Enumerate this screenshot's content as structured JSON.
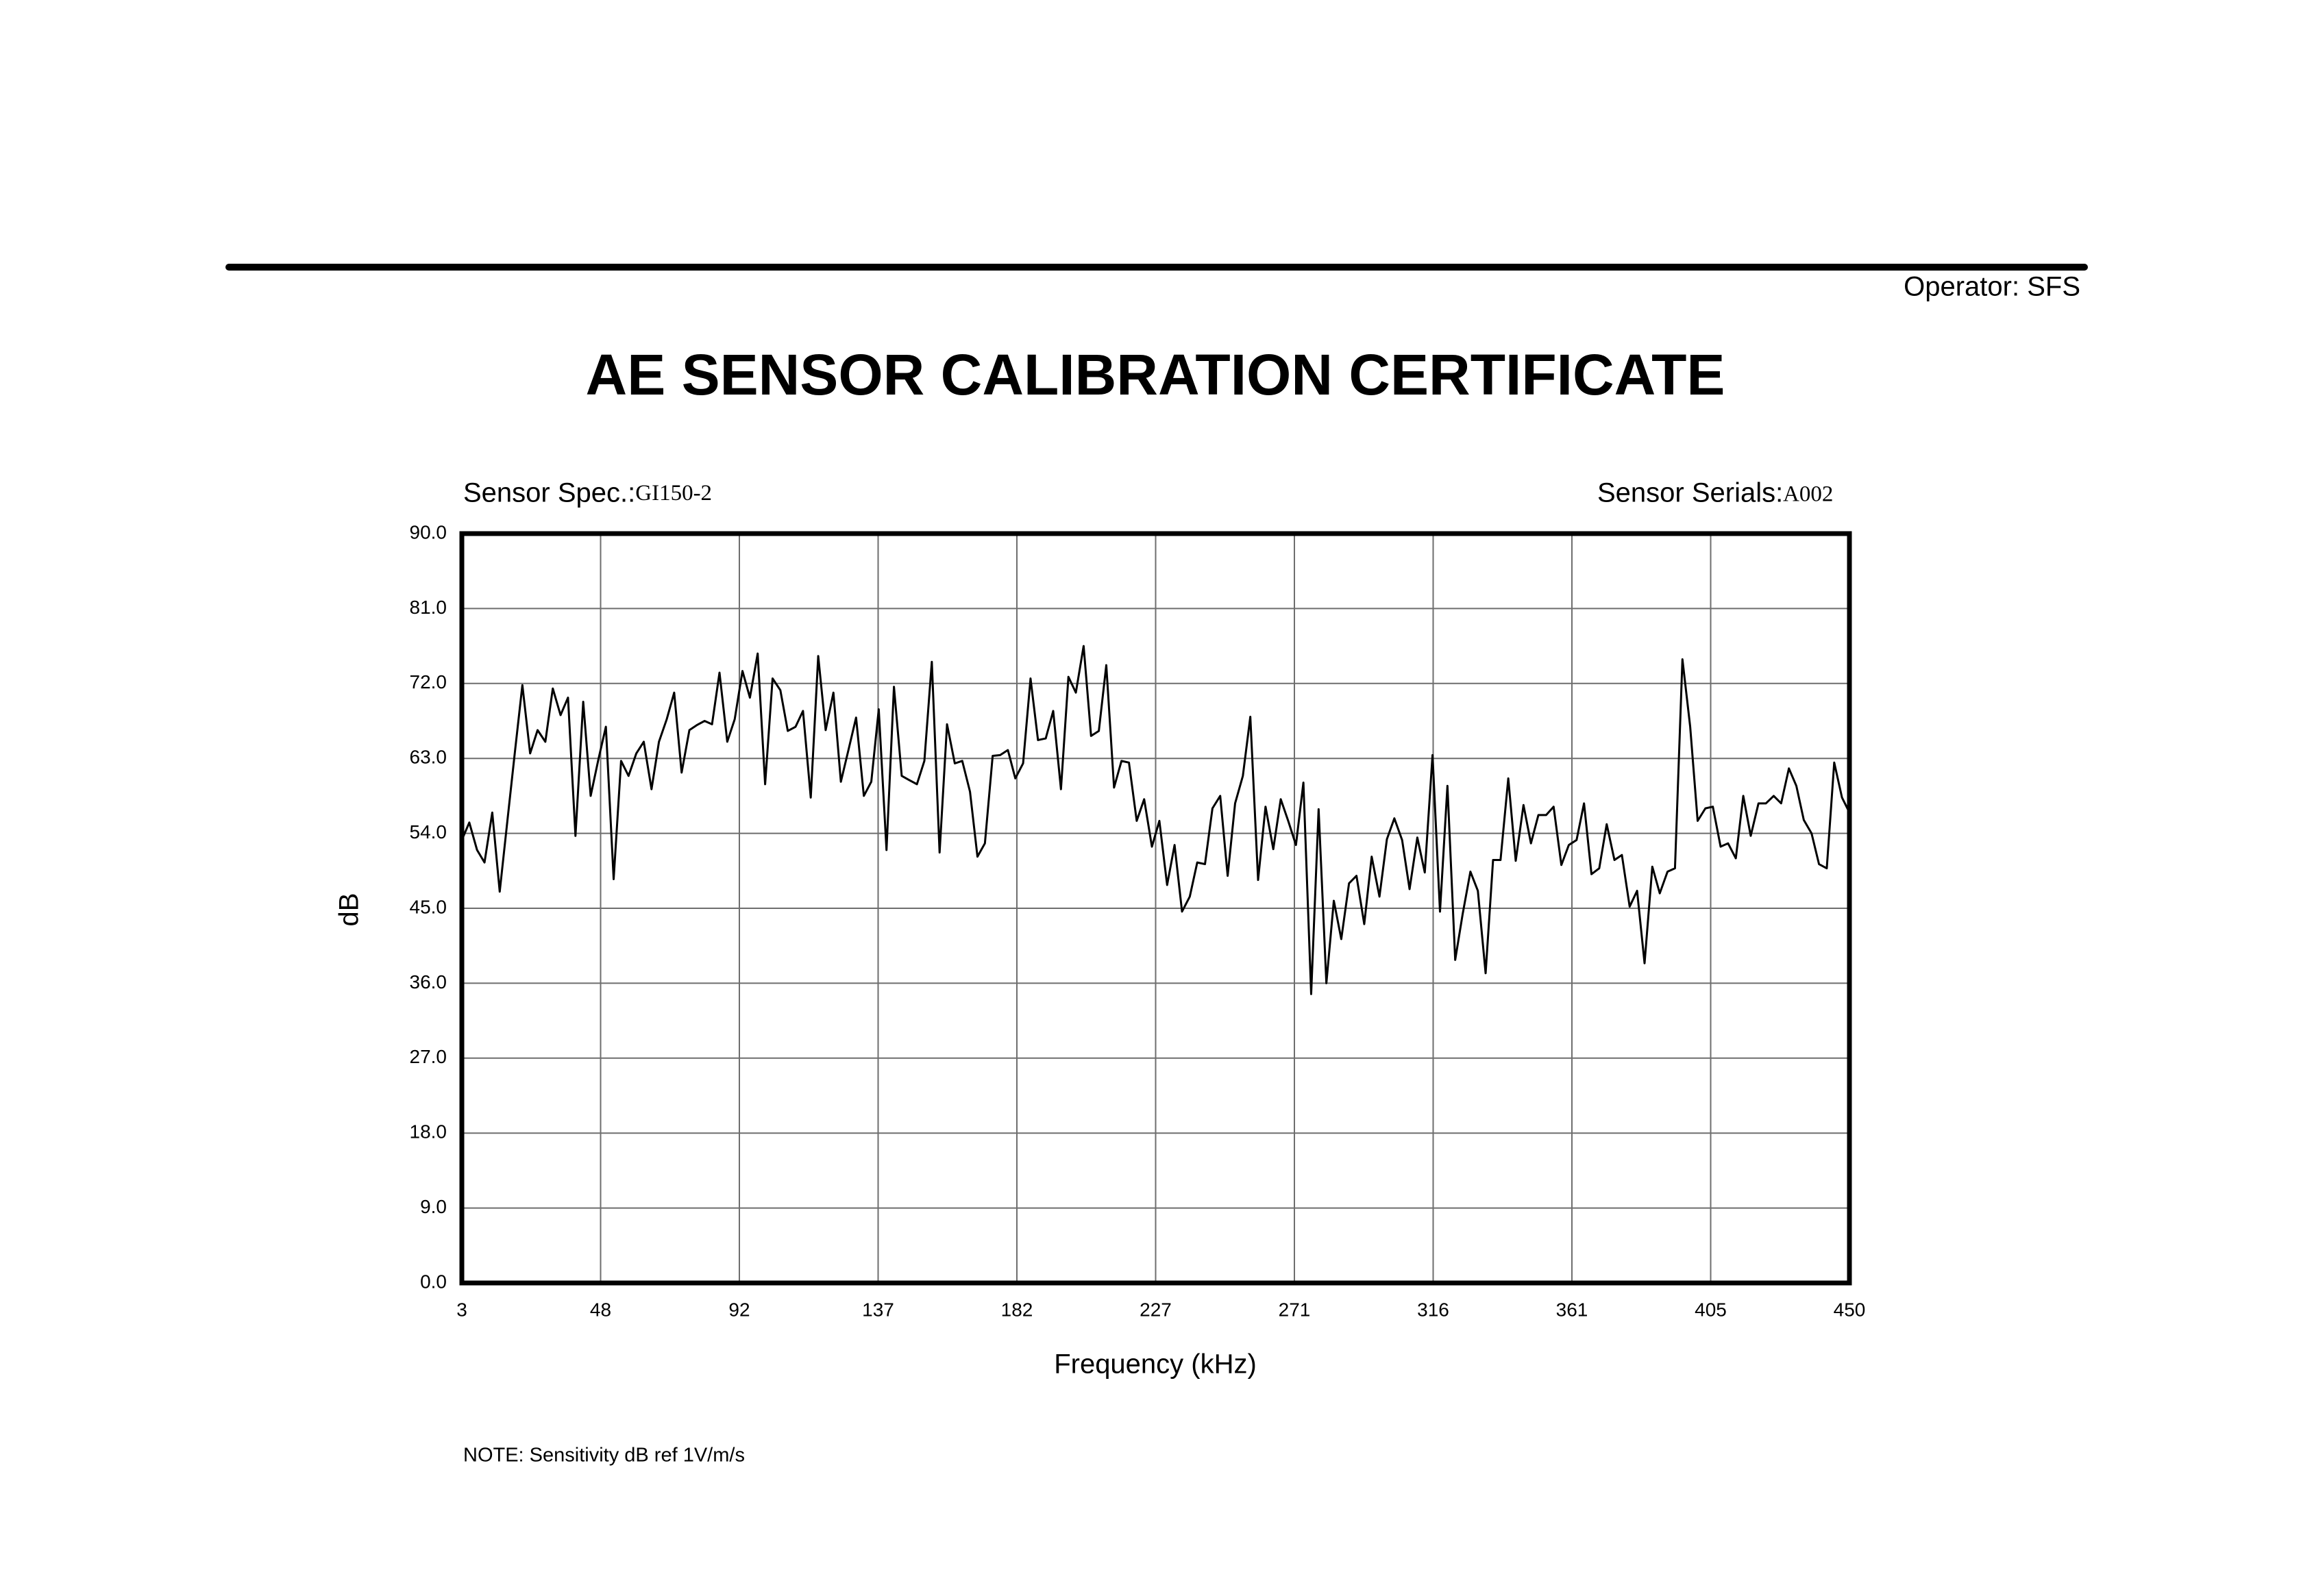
{
  "chart_data": {
    "type": "line",
    "operator": "Operator: SFS",
    "title": "AE SENSOR CALIBRATION CERTIFICATE",
    "sensor_spec_label": "Sensor Spec.:",
    "sensor_spec": "GI150-2",
    "sensor_serials_label": "Sensor Serials:",
    "sensor_serials": "A002",
    "x_label": "Frequency (kHz)",
    "y_label": "dB",
    "note": "NOTE:  Sensitivity dB ref 1V/m/s",
    "xlim": [
      3,
      450
    ],
    "xticks": [
      3,
      {
        "value": 47.7,
        "label": "48"
      },
      {
        "value": 92.4,
        "label": "92"
      },
      {
        "value": 137.1,
        "label": "137"
      },
      {
        "value": 181.8,
        "label": "182"
      },
      {
        "value": 226.5,
        "label": "227"
      },
      {
        "value": 271.2,
        "label": "271"
      },
      {
        "value": 315.9,
        "label": "316"
      },
      {
        "value": 360.6,
        "label": "361"
      },
      {
        "value": 405.3,
        "label": "405"
      },
      450
    ],
    "ylim": [
      0,
      90
    ],
    "yticks": [
      {
        "value": 0,
        "label": "0.0"
      },
      {
        "value": 9,
        "label": "9.0"
      },
      {
        "value": 18,
        "label": "18.0"
      },
      {
        "value": 27,
        "label": "27.0"
      },
      {
        "value": 36,
        "label": "36.0"
      },
      {
        "value": 45,
        "label": "45.0"
      },
      {
        "value": 54,
        "label": "54.0"
      },
      {
        "value": 63,
        "label": "63.0"
      },
      {
        "value": 72,
        "label": "72.0"
      },
      {
        "value": 81,
        "label": "81.0"
      },
      {
        "value": 90,
        "label": "90.0"
      }
    ],
    "grid": true,
    "color": "#000000",
    "x": [
      3.0,
      5.4,
      7.9,
      10.3,
      12.8,
      15.2,
      17.7,
      20.1,
      22.5,
      25.0,
      27.4,
      29.9,
      32.3,
      34.8,
      37.2,
      39.6,
      42.1,
      44.5,
      47.0,
      49.4,
      51.9,
      54.3,
      56.7,
      59.2,
      61.6,
      64.1,
      66.5,
      69.0,
      71.4,
      73.8,
      76.3,
      78.7,
      81.2,
      83.6,
      86.0,
      88.5,
      90.9,
      93.4,
      95.8,
      98.3,
      100.7,
      103.1,
      105.6,
      108.0,
      110.5,
      112.9,
      115.4,
      117.8,
      120.2,
      122.7,
      125.1,
      127.6,
      130.0,
      132.5,
      134.9,
      137.3,
      139.8,
      142.2,
      144.7,
      147.1,
      149.6,
      152.0,
      154.4,
      156.9,
      159.3,
      161.8,
      164.2,
      166.7,
      169.1,
      171.5,
      174.0,
      176.4,
      178.9,
      181.3,
      183.8,
      186.2,
      188.6,
      191.1,
      193.5,
      196.0,
      198.4,
      200.8,
      203.3,
      205.7,
      208.2,
      210.6,
      213.1,
      215.5,
      217.9,
      220.4,
      222.8,
      225.3,
      227.7,
      230.2,
      232.6,
      235.0,
      237.5,
      239.9,
      242.4,
      244.8,
      247.3,
      249.7,
      252.1,
      254.6,
      257.0,
      259.5,
      261.9,
      264.4,
      266.8,
      269.2,
      271.7,
      274.1,
      276.6,
      279.0,
      281.5,
      283.9,
      286.3,
      288.8,
      291.2,
      293.7,
      296.1,
      298.6,
      301.0,
      303.4,
      305.9,
      308.3,
      310.8,
      313.2,
      315.7,
      318.1,
      320.5,
      323.0,
      325.4,
      327.9,
      330.3,
      332.8,
      335.2,
      337.6,
      340.1,
      342.5,
      345.0,
      347.4,
      349.8,
      352.3,
      354.7,
      357.2,
      359.6,
      362.1,
      364.5,
      366.9,
      369.4,
      371.8,
      374.3,
      376.7,
      379.2,
      381.6,
      384.0,
      386.5,
      388.9,
      391.4,
      393.8,
      396.2,
      398.7,
      401.1,
      403.6,
      406.0,
      408.5,
      410.9,
      413.4,
      415.8,
      418.2,
      420.7,
      423.1,
      425.6,
      428.0,
      430.5,
      432.9,
      435.3,
      437.8,
      440.2,
      442.7,
      445.1,
      447.6,
      450.0
    ],
    "values": [
      53.2,
      55.3,
      52,
      50.5,
      56.5,
      47,
      55.6,
      63.8,
      71.8,
      63.6,
      66.4,
      65,
      71.4,
      68.2,
      70.3,
      53.7,
      69.8,
      58.5,
      62.9,
      66.8,
      48.5,
      62.7,
      60.9,
      63.6,
      65,
      59.3,
      65,
      67.7,
      70.9,
      61.3,
      66.4,
      67,
      67.5,
      67.1,
      73.3,
      65,
      67.7,
      73.5,
      70.3,
      75.6,
      59.9,
      72.6,
      71.2,
      66.3,
      66.8,
      68.7,
      58.3,
      75.3,
      66.4,
      70.9,
      60.2,
      64.1,
      67.9,
      58.5,
      60.2,
      68.9,
      52,
      71.6,
      60.9,
      60.4,
      59.9,
      62.7,
      74.6,
      51.7,
      67.1,
      62.4,
      62.7,
      59,
      51.2,
      52.8,
      63.3,
      63.4,
      64,
      60.6,
      62.4,
      72.6,
      65.2,
      65.4,
      68.7,
      59.3,
      72.8,
      70.9,
      76.5,
      65.7,
      66.3,
      74.2,
      59.5,
      62.7,
      62.5,
      55.5,
      58.1,
      52.4,
      55.5,
      47.8,
      52.6,
      44.6,
      46.4,
      50.5,
      50.3,
      57,
      58.5,
      48.9,
      57.6,
      60.9,
      68,
      48.4,
      57.2,
      52.1,
      58.1,
      55.5,
      52.6,
      60.1,
      34.7,
      56.9,
      36,
      45.9,
      41.3,
      48,
      48.9,
      43.1,
      51.2,
      46.4,
      53.3,
      55.8,
      53.2,
      47.3,
      53.5,
      49.3,
      63.4,
      44.6,
      59.7,
      38.8,
      44.3,
      49.4,
      47.1,
      37.2,
      50.8,
      50.8,
      60.6,
      50.7,
      57.4,
      52.8,
      56.2,
      56.2,
      57.2,
      50.2,
      52.6,
      53.2,
      57.6,
      49.1,
      49.8,
      55.1,
      50.8,
      51.4,
      45.2,
      47.1,
      38.4,
      50,
      46.8,
      49.4,
      49.8,
      74.9,
      66.8,
      55.5,
      57,
      57.2,
      52.4,
      52.8,
      51,
      58.5,
      53.7,
      57.6,
      57.6,
      58.5,
      57.6,
      61.8,
      59.7,
      55.6,
      54,
      50.3,
      49.8,
      62.5,
      58.3,
      56.5
    ]
  }
}
